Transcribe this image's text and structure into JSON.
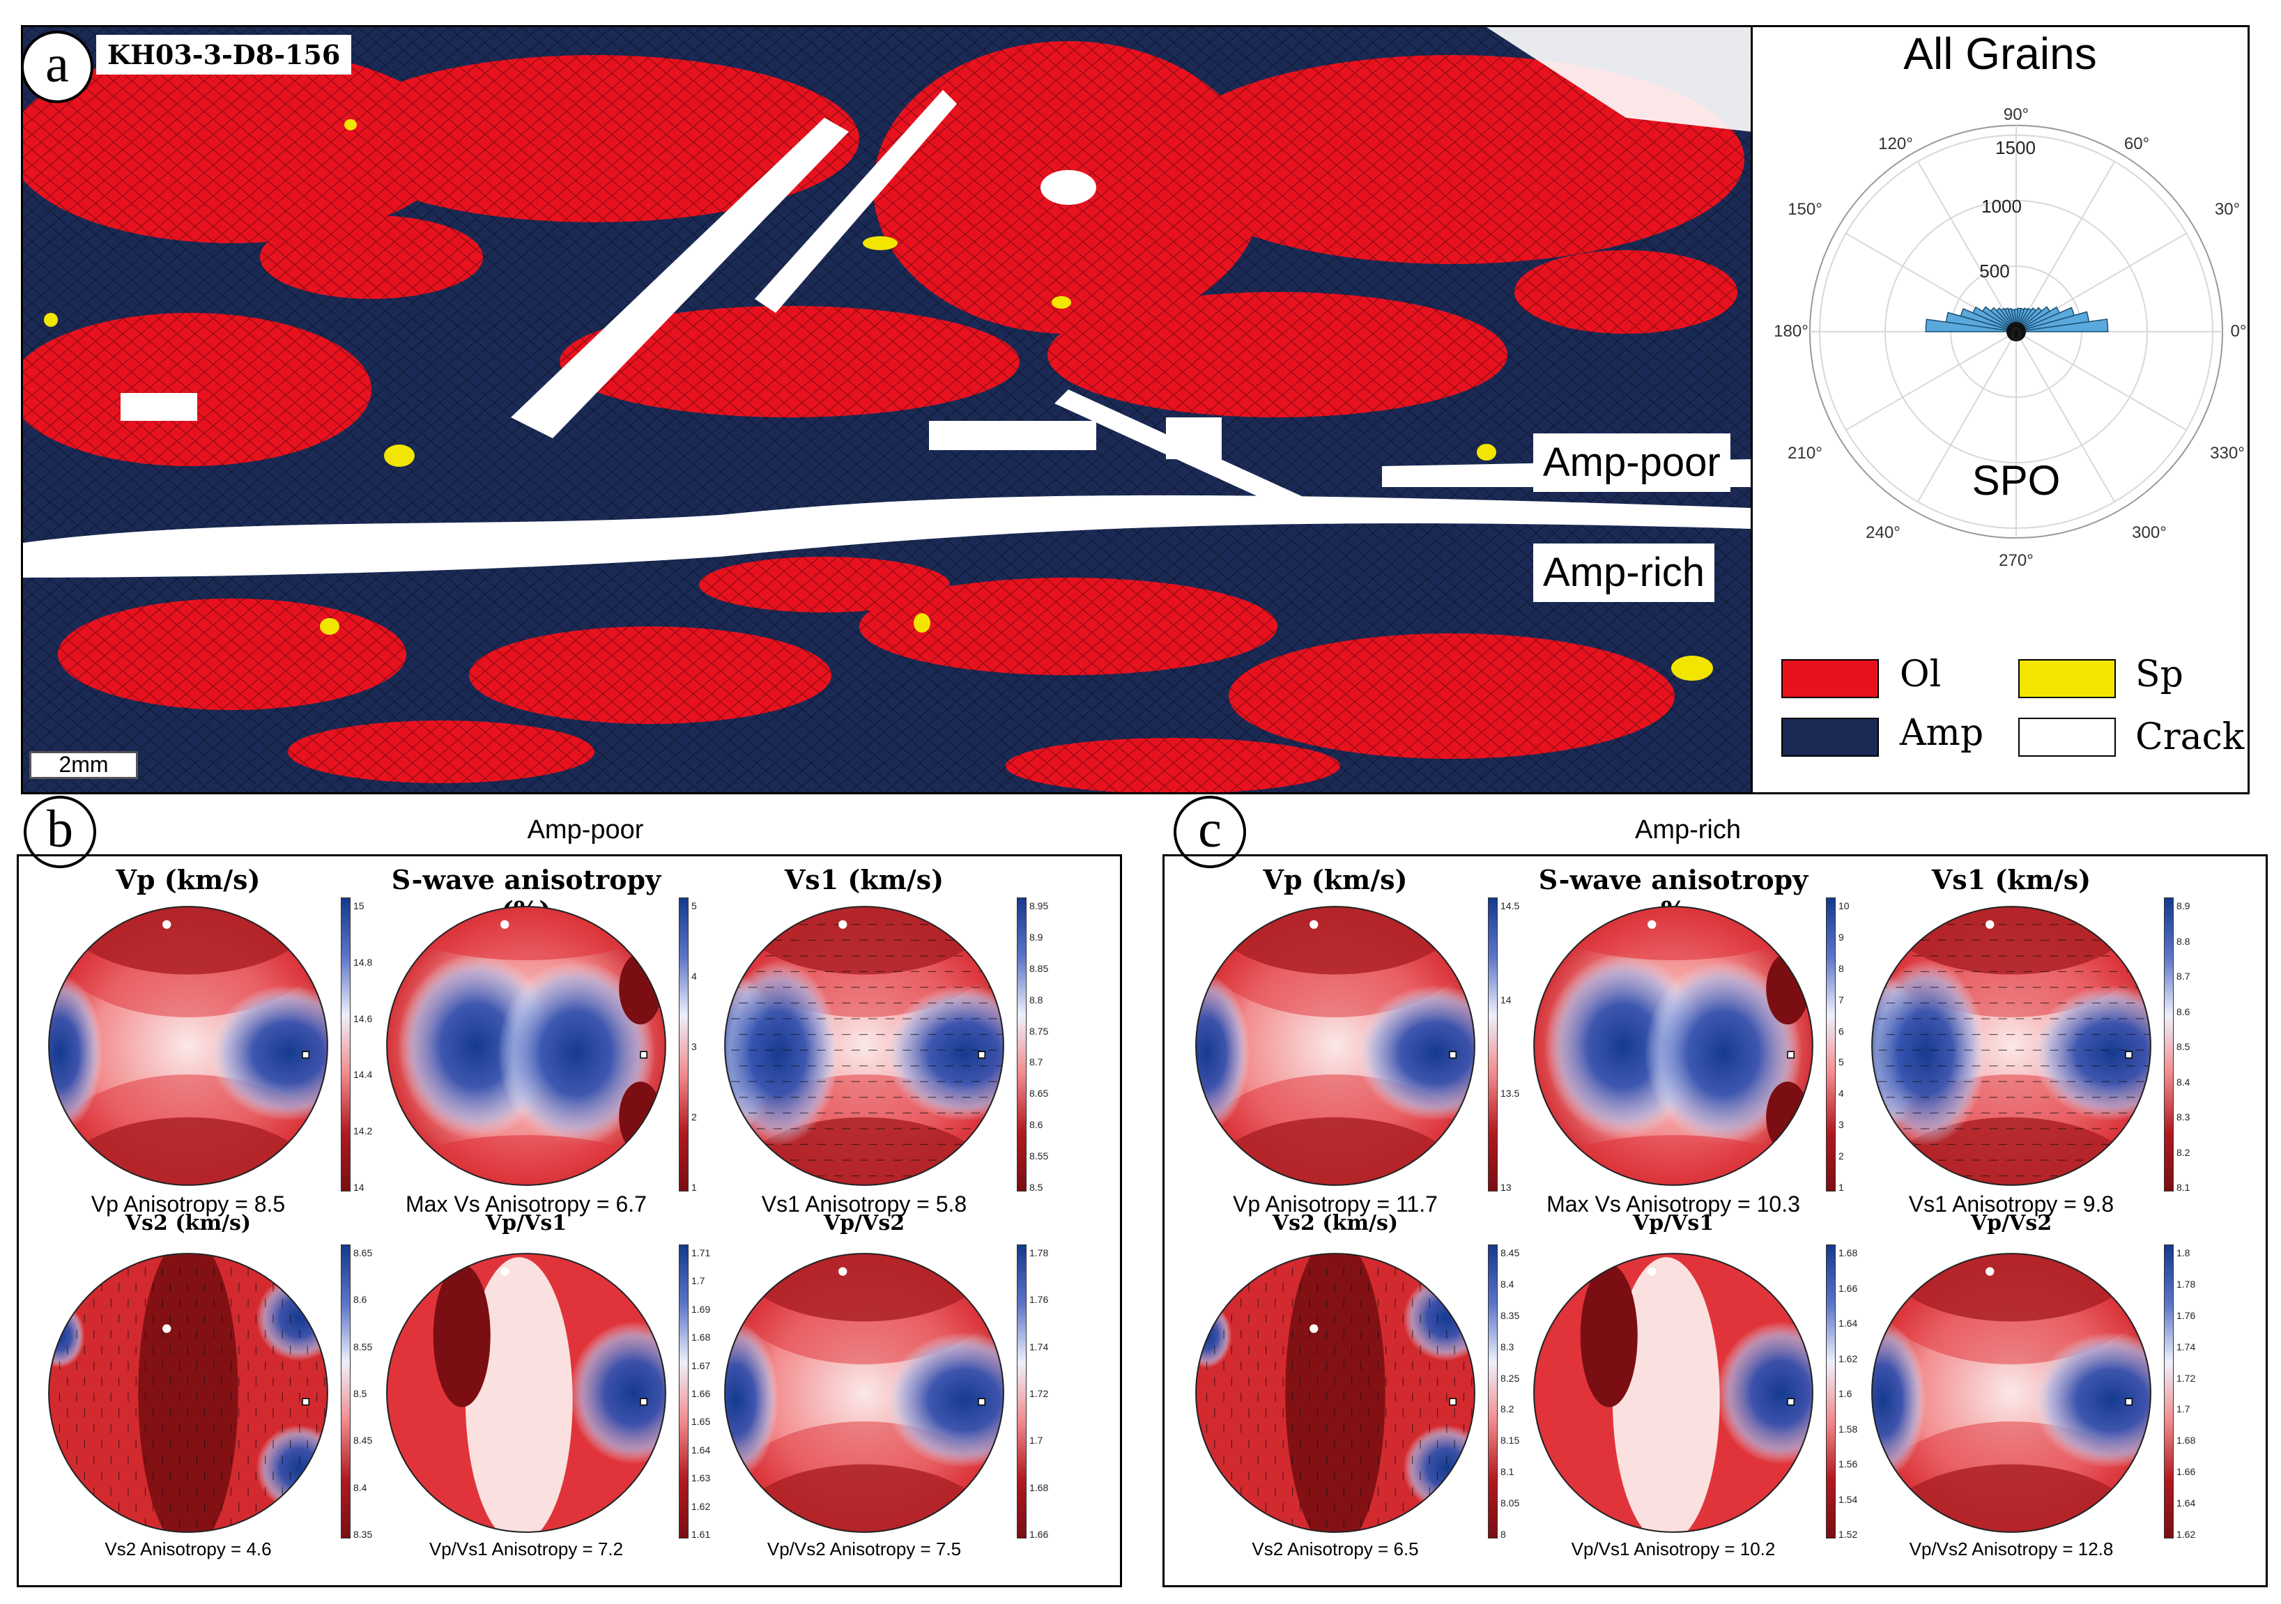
{
  "panel_a": {
    "letter": "a",
    "sample_id": "KH03-3-D8-156",
    "scale_bar": "2mm",
    "zone_upper": "Amp-poor",
    "zone_lower": "Amp-rich",
    "rose": {
      "title": "All Grains",
      "label": "SPO",
      "angles": [
        "90°",
        "60°",
        "30°",
        "0°",
        "330°",
        "300°",
        "270°",
        "240°",
        "210°",
        "180°",
        "150°",
        "120°"
      ],
      "radial_ticks": [
        "0",
        "500",
        "1000",
        "1500"
      ]
    },
    "legend": [
      {
        "name": "Ol",
        "color": "#e8121e"
      },
      {
        "name": "Sp",
        "color": "#f2e600"
      },
      {
        "name": "Amp",
        "color": "#1b2a55"
      },
      {
        "name": "Crack",
        "color": "#ffffff"
      }
    ]
  },
  "panel_b": {
    "letter": "b",
    "title": "Amp-poor",
    "top": [
      {
        "title": "Vp (km/s)",
        "caption": "Vp Anisotropy = 8.5",
        "ticks": [
          "15",
          "14.8",
          "14.6",
          "14.4",
          "14.2",
          "14"
        ]
      },
      {
        "title": "S-wave anisotropy (%)",
        "caption": "Max Vs Anisotropy = 6.7",
        "ticks": [
          "5",
          "4",
          "3",
          "2",
          "1"
        ]
      },
      {
        "title": "Vs1 (km/s)",
        "caption": "Vs1 Anisotropy = 5.8",
        "ticks": [
          "8.95",
          "8.9",
          "8.85",
          "8.8",
          "8.75",
          "8.7",
          "8.65",
          "8.6",
          "8.55",
          "8.5"
        ]
      }
    ],
    "bottom": [
      {
        "title": "Vs2 (km/s)",
        "caption": "Vs2 Anisotropy = 4.6",
        "ticks": [
          "8.65",
          "8.6",
          "8.55",
          "8.5",
          "8.45",
          "8.4",
          "8.35"
        ]
      },
      {
        "title": "Vp/Vs1",
        "caption": "Vp/Vs1 Anisotropy = 7.2",
        "ticks": [
          "1.71",
          "1.7",
          "1.69",
          "1.68",
          "1.67",
          "1.66",
          "1.65",
          "1.64",
          "1.63",
          "1.62",
          "1.61"
        ]
      },
      {
        "title": "Vp/Vs2",
        "caption": "Vp/Vs2 Anisotropy = 7.5",
        "ticks": [
          "1.78",
          "1.76",
          "1.74",
          "1.72",
          "1.7",
          "1.68",
          "1.66"
        ]
      }
    ]
  },
  "panel_c": {
    "letter": "c",
    "title": "Amp-rich",
    "top": [
      {
        "title": "Vp (km/s)",
        "caption": "Vp Anisotropy = 11.7",
        "ticks": [
          "14.5",
          "14",
          "13.5",
          "13"
        ]
      },
      {
        "title": "S-wave anisotropy  %",
        "caption": "Max Vs Anisotropy = 10.3",
        "ticks": [
          "10",
          "9",
          "8",
          "7",
          "6",
          "5",
          "4",
          "3",
          "2",
          "1"
        ]
      },
      {
        "title": "Vs1 (km/s)",
        "caption": "Vs1 Anisotropy = 9.8",
        "ticks": [
          "8.9",
          "8.8",
          "8.7",
          "8.6",
          "8.5",
          "8.4",
          "8.3",
          "8.2",
          "8.1"
        ]
      }
    ],
    "bottom": [
      {
        "title": "Vs2 (km/s)",
        "caption": "Vs2 Anisotropy = 6.5",
        "ticks": [
          "8.45",
          "8.4",
          "8.35",
          "8.3",
          "8.25",
          "8.2",
          "8.15",
          "8.1",
          "8.05",
          "8"
        ]
      },
      {
        "title": "Vp/Vs1",
        "caption": "Vp/Vs1 Anisotropy = 10.2",
        "ticks": [
          "1.68",
          "1.66",
          "1.64",
          "1.62",
          "1.6",
          "1.58",
          "1.56",
          "1.54",
          "1.52"
        ]
      },
      {
        "title": "Vp/Vs2",
        "caption": "Vp/Vs2 Anisotropy = 12.8",
        "ticks": [
          "1.8",
          "1.78",
          "1.76",
          "1.74",
          "1.72",
          "1.7",
          "1.68",
          "1.66",
          "1.64",
          "1.62"
        ]
      }
    ]
  }
}
